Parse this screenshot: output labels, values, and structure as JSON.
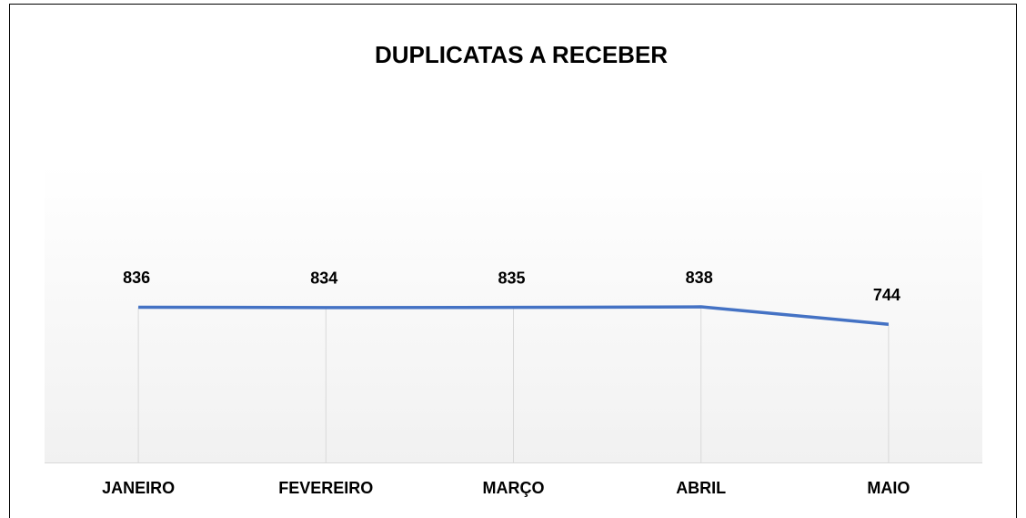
{
  "chart_data": {
    "type": "line",
    "title": "DUPLICATAS A RECEBER",
    "categories": [
      "JANEIRO",
      "FEVEREIRO",
      "MARÇO",
      "ABRIL",
      "MAIO"
    ],
    "values": [
      836,
      834,
      835,
      838,
      744
    ],
    "color": "#4472c4",
    "ylim": [
      0,
      2000
    ]
  }
}
